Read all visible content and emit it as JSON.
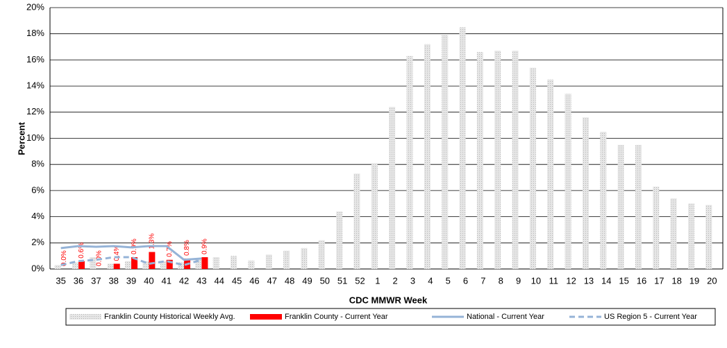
{
  "chart_data": {
    "type": "combo",
    "y_label": "Percent",
    "x_label": "CDC MMWR Week",
    "categories": [
      "35",
      "36",
      "37",
      "38",
      "39",
      "40",
      "41",
      "42",
      "43",
      "44",
      "45",
      "46",
      "47",
      "48",
      "49",
      "50",
      "51",
      "52",
      "1",
      "2",
      "3",
      "4",
      "5",
      "6",
      "7",
      "8",
      "9",
      "10",
      "11",
      "12",
      "13",
      "14",
      "15",
      "16",
      "17",
      "18",
      "19",
      "20"
    ],
    "ylim": [
      0,
      20
    ],
    "yticks": [
      {
        "value": 0,
        "label": "0%"
      },
      {
        "value": 2,
        "label": "2%"
      },
      {
        "value": 4,
        "label": "4%"
      },
      {
        "value": 6,
        "label": "6%"
      },
      {
        "value": 8,
        "label": "8%"
      },
      {
        "value": 10,
        "label": "10%"
      },
      {
        "value": 12,
        "label": "12%"
      },
      {
        "value": 14,
        "label": "14%"
      },
      {
        "value": 16,
        "label": "16%"
      },
      {
        "value": 18,
        "label": "18%"
      },
      {
        "value": 20,
        "label": "20%"
      }
    ],
    "grid": true,
    "legend": "bottom",
    "series": [
      {
        "name": "Franklin County Historical Weekly Avg.",
        "type": "bar",
        "color": "#cfcfcf",
        "values": [
          0.3,
          0.5,
          0.9,
          0.4,
          0.6,
          0.6,
          0.6,
          0.5,
          0.7,
          0.9,
          1.0,
          0.65,
          1.1,
          1.4,
          1.6,
          2.2,
          4.4,
          7.3,
          8.1,
          12.4,
          16.3,
          17.2,
          17.9,
          18.5,
          16.6,
          16.7,
          16.7,
          15.4,
          14.5,
          13.4,
          11.6,
          10.5,
          9.5,
          9.5,
          6.3,
          5.4,
          5.0,
          4.9
        ]
      },
      {
        "name": "Franklin County - Current Year",
        "type": "bar",
        "color": "#ff0000",
        "values": [
          0.0,
          0.6,
          0.0,
          0.4,
          0.9,
          1.3,
          0.7,
          0.8,
          0.9,
          null,
          null,
          null,
          null,
          null,
          null,
          null,
          null,
          null,
          null,
          null,
          null,
          null,
          null,
          null,
          null,
          null,
          null,
          null,
          null,
          null,
          null,
          null,
          null,
          null,
          null,
          null,
          null,
          null
        ],
        "value_labels": [
          "0.0%",
          "0.6%",
          "0.0%",
          "0.4%",
          "0.9%",
          "1.3%",
          "0.7%",
          "0.8%",
          "0.9%",
          null,
          null,
          null,
          null,
          null,
          null,
          null,
          null,
          null,
          null,
          null,
          null,
          null,
          null,
          null,
          null,
          null,
          null,
          null,
          null,
          null,
          null,
          null,
          null,
          null,
          null,
          null,
          null,
          null
        ]
      },
      {
        "name": "National - Current Year",
        "type": "line",
        "color": "#95b3d7",
        "dashed": false,
        "values": [
          1.6,
          1.75,
          1.7,
          1.75,
          1.65,
          1.75,
          1.75,
          0.7,
          0.8,
          null,
          null,
          null,
          null,
          null,
          null,
          null,
          null,
          null,
          null,
          null,
          null,
          null,
          null,
          null,
          null,
          null,
          null,
          null,
          null,
          null,
          null,
          null,
          null,
          null,
          null,
          null,
          null,
          null
        ]
      },
      {
        "name": "US Region 5 - Current Year",
        "type": "line",
        "color": "#95b3d7",
        "dashed": true,
        "values": [
          0.3,
          0.6,
          0.7,
          0.9,
          0.9,
          0.4,
          0.6,
          0.3,
          0.7,
          null,
          null,
          null,
          null,
          null,
          null,
          null,
          null,
          null,
          null,
          null,
          null,
          null,
          null,
          null,
          null,
          null,
          null,
          null,
          null,
          null,
          null,
          null,
          null,
          null,
          null,
          null,
          null,
          null
        ]
      }
    ]
  }
}
